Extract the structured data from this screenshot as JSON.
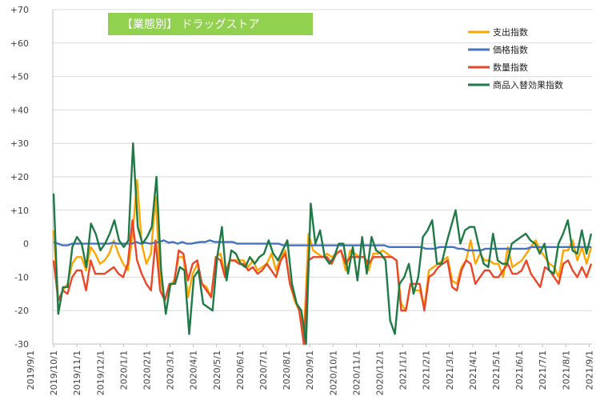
{
  "chart_data": {
    "type": "line",
    "title": "【業態別】 ドラッグストア",
    "title_bg": "#92D050",
    "ylim": [
      -30,
      70
    ],
    "y_ticks": [
      -30,
      -20,
      -10,
      0,
      10,
      20,
      30,
      40,
      50,
      60,
      70
    ],
    "y_tick_labels": [
      "-30",
      "-20",
      "-10",
      "0",
      "+10",
      "+20",
      "+30",
      "+40",
      "+50",
      "+60",
      "+70"
    ],
    "x_tick_labels": [
      "2019/9/1",
      "2019/10/1",
      "2019/11/1",
      "2019/12/1",
      "2020/1/1",
      "2020/2/1",
      "2020/3/1",
      "2020/4/1",
      "2020/5/1",
      "2020/6/1",
      "2020/7/1",
      "2020/8/1",
      "2020/9/1",
      "2020/10/1",
      "2020/11/1",
      "2020/12/1",
      "2021/1/1",
      "2021/2/1",
      "2021/3/1",
      "2021/4/1",
      "2021/5/1",
      "2021/6/1",
      "2021/7/1",
      "2021/8/1",
      "2021/9/1"
    ],
    "grid": true,
    "legend_position": "top-right",
    "series": [
      {
        "name": "支出指数",
        "color": "#FFA500",
        "values": [
          4,
          -17,
          -14,
          -12,
          -6,
          -4,
          -4,
          -8,
          -1,
          -3,
          -6,
          -5,
          -3,
          1,
          -3,
          -6,
          -8,
          2,
          19,
          0,
          -6,
          -3,
          14,
          -10,
          -17,
          -13,
          -11,
          -4,
          -4,
          -16,
          -9,
          -6,
          -12,
          -13,
          -16,
          -4,
          -3,
          -9,
          -5,
          -5,
          -5,
          -5,
          -7,
          -5,
          -8,
          -7,
          -6,
          -3,
          -8,
          -4,
          -2,
          -12,
          -17,
          -20,
          -28,
          3,
          -2,
          -3,
          -4,
          -3,
          -4,
          -3,
          -2,
          -8,
          -2,
          -3,
          -4,
          -4,
          -8,
          -3,
          -3,
          -2,
          -3,
          -4,
          -5,
          -18,
          -20,
          -12,
          -14,
          -14,
          -19,
          -8,
          -7,
          -6,
          -5,
          -4,
          -11,
          -12,
          -7,
          -5,
          1,
          -6,
          -3,
          -5,
          -5,
          -6,
          -6,
          -10,
          -1,
          -7,
          -6,
          -5,
          -3,
          -1,
          1,
          -2,
          -4,
          -6,
          -7,
          -10,
          -2,
          -2,
          1,
          -5,
          -1,
          -6,
          -1
        ]
      },
      {
        "name": "価格指数",
        "color": "#4472C4",
        "values": [
          0.5,
          0,
          -0.5,
          -0.5,
          0,
          0,
          0,
          0,
          0,
          0,
          0,
          0,
          0,
          0.3,
          0,
          0,
          0,
          0,
          0.5,
          0,
          0.3,
          0,
          0.3,
          0.5,
          1,
          0.3,
          0.5,
          0,
          0.5,
          0,
          0,
          0.3,
          0.5,
          0.5,
          1,
          0.5,
          0.5,
          0.5,
          0.5,
          0.5,
          0,
          0,
          0,
          0,
          0,
          0,
          0,
          0,
          0,
          0,
          -0.5,
          -0.5,
          -0.5,
          -0.5,
          -0.5,
          -0.5,
          -0.5,
          -0.5,
          -0.5,
          -0.5,
          -0.5,
          -0.5,
          -0.5,
          -0.5,
          -0.5,
          -0.5,
          -0.5,
          -0.5,
          -0.5,
          -0.5,
          -0.5,
          -0.5,
          -0.5,
          -1,
          -1,
          -1,
          -1,
          -1,
          -1,
          -1,
          -1,
          -1.5,
          -1.5,
          -1.5,
          -1,
          -1,
          -1,
          -1,
          -1.5,
          -1.5,
          -2,
          -2,
          -2,
          -2,
          -1.5,
          -1.5,
          -1.5,
          -1.5,
          -1.5,
          -1.5,
          -1.5,
          -1.5,
          -1.5,
          -1.5,
          -1,
          -1,
          -1,
          -1,
          -1,
          -1,
          -1,
          -1,
          -1,
          -1,
          -1,
          -1,
          -1,
          -1
        ]
      },
      {
        "name": "数量指数",
        "color": "#E8472A",
        "values": [
          -5,
          -17,
          -14,
          -15,
          -10,
          -8,
          -8,
          -14,
          -5,
          -9,
          -9,
          -9,
          -8,
          -7,
          -9,
          -10,
          -6,
          7,
          -5,
          -9,
          -12,
          -14,
          1,
          -14,
          -17,
          -12,
          -12,
          -2,
          -3,
          -11,
          -6,
          -5,
          -12,
          -14,
          -16,
          -4,
          -5,
          -10,
          -5,
          -5,
          -6,
          -6,
          -8,
          -7,
          -9,
          -8,
          -6,
          -8,
          -10,
          -5,
          -3,
          -12,
          -16,
          -20,
          -30,
          -5,
          -4,
          -4,
          -4,
          -4,
          -6,
          -3,
          -2,
          -6,
          -4,
          -4,
          -4,
          -4,
          -6,
          -4,
          -4,
          -4,
          -4,
          -4,
          -5,
          -20,
          -20,
          -12,
          -12,
          -12,
          -20,
          -10,
          -9,
          -7,
          -6,
          -5,
          -13,
          -14,
          -8,
          -5,
          -6,
          -12,
          -10,
          -8,
          -8,
          -10,
          -10,
          -8,
          -6,
          -9,
          -9,
          -8,
          -5,
          -9,
          -11,
          -13,
          -7,
          -8,
          -10,
          -12,
          -6,
          -5,
          -8,
          -10,
          -7,
          -10,
          -6
        ]
      },
      {
        "name": "商品入替効果指数",
        "color": "#1E7A46",
        "values": [
          15,
          -21,
          -13,
          -13,
          -1,
          2,
          0,
          -7,
          6,
          3,
          -2,
          0,
          3,
          7,
          1,
          -1,
          1,
          30,
          5,
          0,
          2,
          5,
          20,
          -8,
          -21,
          -12,
          -12,
          -7,
          -8,
          -27,
          -10,
          -8,
          -18,
          -19,
          -20,
          -4,
          5,
          -11,
          -2,
          -3,
          -6,
          -7,
          -4,
          -6,
          -4,
          -3,
          1,
          -3,
          -5,
          -2,
          1,
          -12,
          -18,
          -20,
          -34,
          12,
          0,
          4,
          -4,
          -6,
          -4,
          0,
          0,
          -9,
          -1,
          -11,
          2,
          -9,
          2,
          -2,
          -3,
          -5,
          -23,
          -27,
          -12,
          -10,
          -6,
          -15,
          -10,
          2,
          4,
          7,
          -6,
          -6,
          0,
          5,
          10,
          0,
          4,
          5,
          5,
          -1,
          -6,
          -7,
          3,
          -5,
          -6,
          -6,
          0,
          1,
          2,
          3,
          1,
          0,
          -3,
          0,
          -8,
          -9,
          0,
          3,
          7,
          -2,
          -3,
          4,
          -3,
          3
        ]
      }
    ]
  }
}
